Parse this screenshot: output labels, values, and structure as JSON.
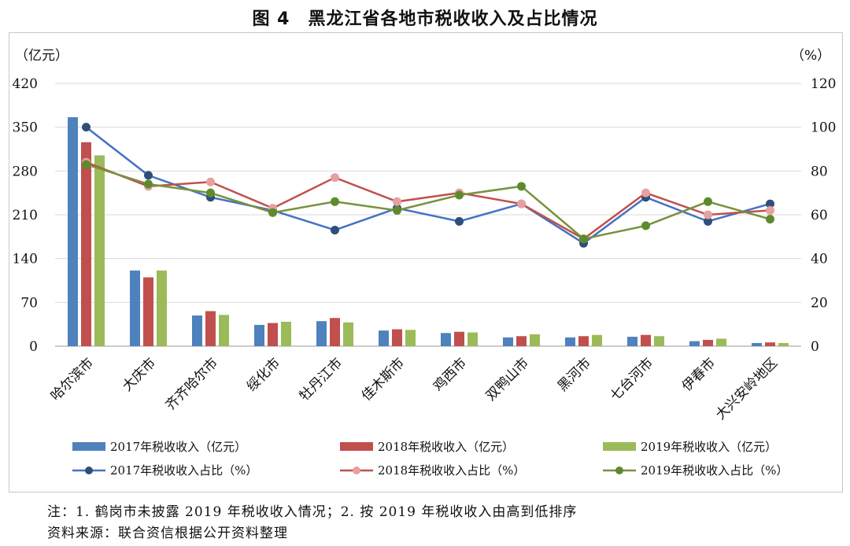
{
  "title": "图 4　黑龙江省各地市税收收入及占比情况",
  "notes": {
    "note": "注：1. 鹤岗市未披露 2019 年税收收入情况；2. 按 2019 年税收收入由高到低排序",
    "source": "资料来源：联合资信根据公开资料整理"
  },
  "chart_data": {
    "type": "bar",
    "categories": [
      "哈尔滨市",
      "大庆市",
      "齐齐哈尔市",
      "绥化市",
      "牡丹江市",
      "佳木斯市",
      "鸡西市",
      "双鸭山市",
      "黑河市",
      "七台河市",
      "伊春市",
      "大兴安岭地区"
    ],
    "left_axis": {
      "unit": "（亿元）",
      "ylim": [
        0,
        420
      ],
      "ticks": [
        "0",
        "70",
        "140",
        "210",
        "280",
        "350",
        "420"
      ]
    },
    "right_axis": {
      "unit": "（%）",
      "ylim": [
        0,
        120
      ],
      "ticks": [
        "0",
        "20",
        "40",
        "60",
        "80",
        "100",
        "120"
      ]
    },
    "bar_series": [
      {
        "name": "2017年税收收入（亿元）",
        "color": "#4f81bd",
        "values": [
          366,
          121,
          49,
          34,
          40,
          25,
          21,
          14,
          14,
          15,
          8,
          5
        ]
      },
      {
        "name": "2018年税收收入（亿元）",
        "color": "#c0504d",
        "values": [
          326,
          110,
          56,
          37,
          45,
          27,
          23,
          16,
          16,
          18,
          10,
          6
        ]
      },
      {
        "name": "2019年税收收入（亿元）",
        "color": "#9bbb59",
        "values": [
          305,
          121,
          50,
          39,
          38,
          26,
          22,
          19,
          18,
          16,
          12,
          5
        ]
      }
    ],
    "line_series": [
      {
        "name": "2017年税收收入占比（%）",
        "color": "#4472c4",
        "marker": "#2f4f7a",
        "values": [
          100,
          78,
          68,
          62,
          53,
          63,
          57,
          65,
          47,
          68,
          57,
          65
        ]
      },
      {
        "name": "2018年税收收入占比（%）",
        "color": "#c0504d",
        "marker": "#e6a0a0",
        "values": [
          84,
          73,
          75,
          63,
          77,
          66,
          70,
          65,
          49,
          70,
          60,
          62
        ]
      },
      {
        "name": "2019年税收收入占比（%）",
        "color": "#76923c",
        "marker": "#5e8a2e",
        "values": [
          83,
          74,
          70,
          61,
          66,
          62,
          69,
          73,
          49,
          55,
          66,
          58
        ]
      }
    ],
    "grid": true,
    "legend_position": "bottom"
  }
}
